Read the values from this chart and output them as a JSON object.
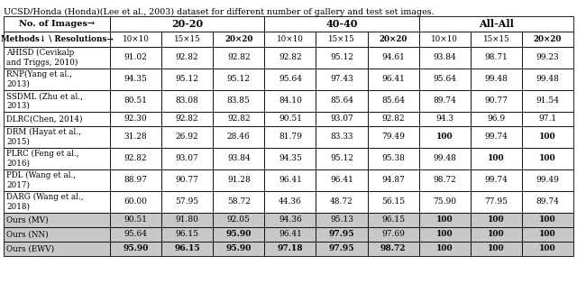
{
  "title": "UCSD/Honda (Honda)(Lee et al., 2003) dataset for different number of gallery and test set images.",
  "group_headers": [
    "No. of Images→",
    "20-20",
    "40-40",
    "All-All"
  ],
  "group_spans": [
    1,
    3,
    3,
    3
  ],
  "sub_headers": [
    "Methods↓ \\ Resolutions→",
    "10×10",
    "15×15",
    "20×20",
    "10×10",
    "15×15",
    "20×20",
    "10×10",
    "15×15",
    "20×20"
  ],
  "sub_bold": [
    true,
    false,
    false,
    true,
    false,
    false,
    true,
    false,
    false,
    true
  ],
  "rows": [
    {
      "method": "AHISD (Cevikalp\nand Triggs, 2010)",
      "values": [
        "91.02",
        "92.82",
        "92.82",
        "92.82",
        "95.12",
        "94.61",
        "93.84",
        "98.71",
        "99.23"
      ],
      "bold": [
        false,
        false,
        false,
        false,
        false,
        false,
        false,
        false,
        false
      ],
      "tall": true
    },
    {
      "method": "RNP(Yang et al.,\n2013)",
      "values": [
        "94.35",
        "95.12",
        "95.12",
        "95.64",
        "97.43",
        "96.41",
        "95.64",
        "99.48",
        "99.48"
      ],
      "bold": [
        false,
        false,
        false,
        false,
        false,
        false,
        false,
        false,
        false
      ],
      "tall": true
    },
    {
      "method": "SSDML (Zhu et al.,\n2013)",
      "values": [
        "80.51",
        "83.08",
        "83.85",
        "84.10",
        "85.64",
        "85.64",
        "89.74",
        "90.77",
        "91.54"
      ],
      "bold": [
        false,
        false,
        false,
        false,
        false,
        false,
        false,
        false,
        false
      ],
      "tall": true
    },
    {
      "method": "DLRC(Chen, 2014)",
      "values": [
        "92.30",
        "92.82",
        "92.82",
        "90.51",
        "93.07",
        "92.82",
        "94.3",
        "96.9",
        "97.1"
      ],
      "bold": [
        false,
        false,
        false,
        false,
        false,
        false,
        false,
        false,
        false
      ],
      "tall": false
    },
    {
      "method": "DRM (Hayat et al.,\n2015)",
      "values": [
        "31.28",
        "26.92",
        "28.46",
        "81.79",
        "83.33",
        "79.49",
        "100",
        "99.74",
        "100"
      ],
      "bold": [
        false,
        false,
        false,
        false,
        false,
        false,
        true,
        false,
        true
      ],
      "tall": true
    },
    {
      "method": "PLRC (Feng et al.,\n2016)",
      "values": [
        "92.82",
        "93.07",
        "93.84",
        "94.35",
        "95.12",
        "95.38",
        "99.48",
        "100",
        "100"
      ],
      "bold": [
        false,
        false,
        false,
        false,
        false,
        false,
        false,
        true,
        true
      ],
      "tall": true
    },
    {
      "method": "PDL (Wang et al.,\n2017)",
      "values": [
        "88.97",
        "90.77",
        "91.28",
        "96.41",
        "96.41",
        "94.87",
        "98.72",
        "99.74",
        "99.49"
      ],
      "bold": [
        false,
        false,
        false,
        false,
        false,
        false,
        false,
        false,
        false
      ],
      "tall": true
    },
    {
      "method": "DARG (Wang et al.,\n2018)",
      "values": [
        "60.00",
        "57.95",
        "58.72",
        "44.36",
        "48.72",
        "56.15",
        "75.90",
        "77.95",
        "89.74"
      ],
      "bold": [
        false,
        false,
        false,
        false,
        false,
        false,
        false,
        false,
        false
      ],
      "tall": true
    },
    {
      "method": "Ours (MV)",
      "values": [
        "90.51",
        "91.80",
        "92.05",
        "94.36",
        "95.13",
        "96.15",
        "100",
        "100",
        "100"
      ],
      "bold": [
        false,
        false,
        false,
        false,
        false,
        false,
        true,
        true,
        true
      ],
      "tall": false
    },
    {
      "method": "Ours (NN)",
      "values": [
        "95.64",
        "96.15",
        "95.90",
        "96.41",
        "97.95",
        "97.69",
        "100",
        "100",
        "100"
      ],
      "bold": [
        false,
        false,
        true,
        false,
        true,
        false,
        true,
        true,
        true
      ],
      "tall": false
    },
    {
      "method": "Ours (EWV)",
      "values": [
        "95.90",
        "96.15",
        "95.90",
        "97.18",
        "97.95",
        "98.72",
        "100",
        "100",
        "100"
      ],
      "bold": [
        true,
        true,
        true,
        true,
        true,
        true,
        true,
        true,
        true
      ],
      "tall": false
    }
  ]
}
